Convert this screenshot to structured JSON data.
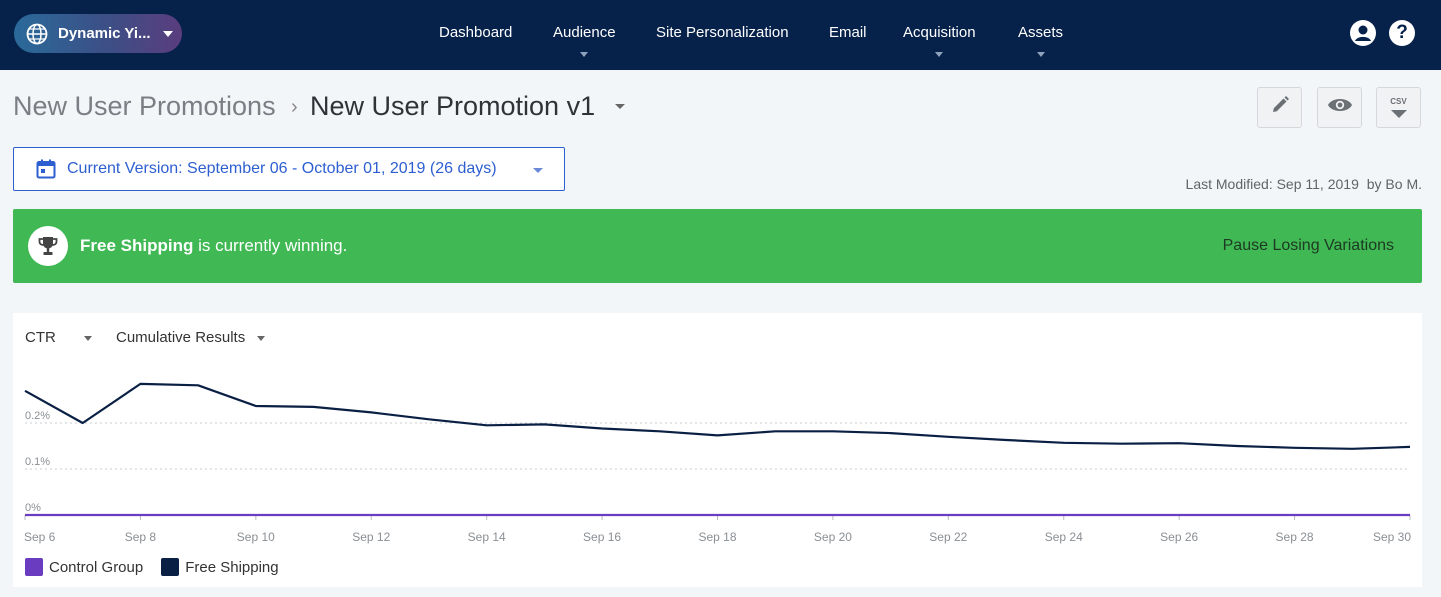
{
  "topbar": {
    "site_name": "Dynamic Yi...",
    "nav": [
      {
        "label": "Dashboard",
        "has_menu": false
      },
      {
        "label": "Audience",
        "has_menu": true
      },
      {
        "label": "Site Personalization",
        "has_menu": false
      },
      {
        "label": "Email",
        "has_menu": false
      },
      {
        "label": "Acquisition",
        "has_menu": true
      },
      {
        "label": "Assets",
        "has_menu": true
      }
    ],
    "help_glyph": "?"
  },
  "breadcrumb": {
    "parent": "New User Promotions",
    "separator": "›",
    "current": "New User Promotion v1"
  },
  "toolbar": {
    "csv_label": "CSV"
  },
  "version": {
    "label": "Current Version: September 06 - October 01, 2019 (26 days)"
  },
  "last_modified": {
    "text": "Last Modified: Sep 11, 2019",
    "by": "by Bo M."
  },
  "banner": {
    "winner": "Free Shipping",
    "suffix": " is currently winning.",
    "action": "Pause Losing Variations",
    "color": "#40b854"
  },
  "chart": {
    "metric": "CTR",
    "mode": "Cumulative Results"
  },
  "chart_data": {
    "type": "line",
    "x": [
      "Sep 6",
      "Sep 7",
      "Sep 8",
      "Sep 9",
      "Sep 10",
      "Sep 11",
      "Sep 12",
      "Sep 13",
      "Sep 14",
      "Sep 15",
      "Sep 16",
      "Sep 17",
      "Sep 18",
      "Sep 19",
      "Sep 20",
      "Sep 21",
      "Sep 22",
      "Sep 23",
      "Sep 24",
      "Sep 25",
      "Sep 26",
      "Sep 27",
      "Sep 28",
      "Sep 29",
      "Sep 30"
    ],
    "tick_labels": [
      "Sep 6",
      "Sep 8",
      "Sep 10",
      "Sep 12",
      "Sep 14",
      "Sep 16",
      "Sep 18",
      "Sep 20",
      "Sep 22",
      "Sep 24",
      "Sep 26",
      "Sep 28",
      "Sep 30"
    ],
    "y_ticks": [
      {
        "value": 0,
        "label": "0%"
      },
      {
        "value": 0.1,
        "label": "0.1%"
      },
      {
        "value": 0.2,
        "label": "0.2%"
      }
    ],
    "ylim": [
      0,
      0.3
    ],
    "grid": true,
    "legend": "bottom-left",
    "series": [
      {
        "name": "Control Group",
        "color": "#6a3cc0",
        "values": [
          0,
          0,
          0,
          0,
          0,
          0,
          0,
          0,
          0,
          0,
          0,
          0,
          0,
          0,
          0,
          0,
          0,
          0,
          0,
          0,
          0,
          0,
          0,
          0,
          0
        ]
      },
      {
        "name": "Free Shipping",
        "color": "#0a1f44",
        "values": [
          0.27,
          0.2,
          0.285,
          0.282,
          0.237,
          0.235,
          0.223,
          0.208,
          0.195,
          0.197,
          0.188,
          0.182,
          0.173,
          0.182,
          0.182,
          0.178,
          0.17,
          0.163,
          0.157,
          0.155,
          0.156,
          0.15,
          0.146,
          0.144,
          0.148
        ]
      }
    ]
  }
}
